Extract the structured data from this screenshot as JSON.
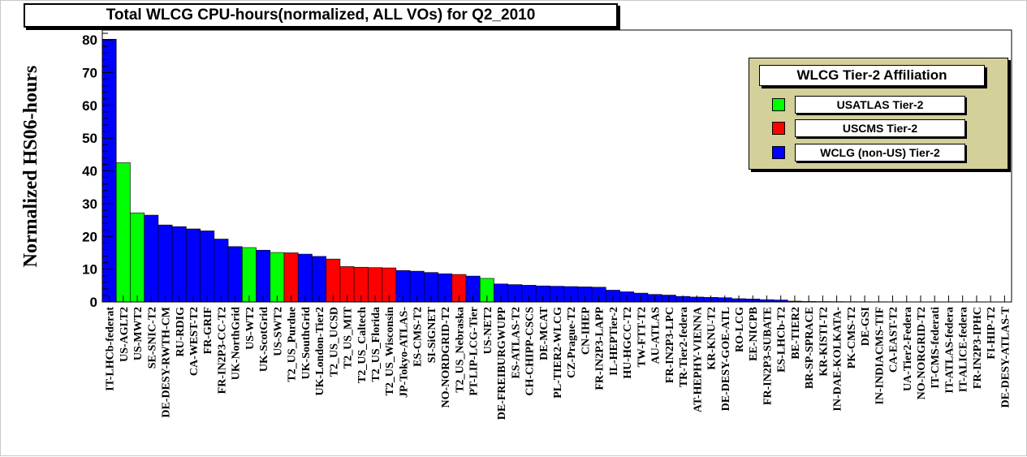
{
  "chart_data": {
    "type": "bar",
    "title": "Total WLCG CPU-hours(normalized, ALL VOs) for Q2_2010",
    "ylabel": "Normalized HS06-hours",
    "y_multiplier_base": "×10",
    "y_multiplier_exp": "6",
    "ylim": [
      0,
      83
    ],
    "yticks": [
      0,
      10,
      20,
      30,
      40,
      50,
      60,
      70,
      80
    ],
    "grid": false,
    "legend_position": "top-right",
    "legend": {
      "title": "WLCG Tier-2 Affiliation",
      "entries": [
        {
          "label": "USATLAS Tier-2",
          "color": "#00ff00"
        },
        {
          "label": "USCMS Tier-2",
          "color": "#ff0000"
        },
        {
          "label": "WCLG (non-US) Tier-2",
          "color": "#0000ff"
        }
      ]
    },
    "group_colors": {
      "usatlas": "#00ff00",
      "uscms": "#ff0000",
      "wlcg": "#0000ff"
    },
    "categories": [
      "IT-LHCb-federat",
      "US-AGLT2",
      "US-MWT2",
      "SE-SNIC-T2",
      "DE-DESY-RWTH-CM",
      "RU-RDIG",
      "CA-WEST-T2",
      "FR-GRIF",
      "FR-IN2P3-CC-T2",
      "UK-NorthGrid",
      "US-WT2",
      "UK-ScotGrid",
      "US-SWT2",
      "T2_US_Purdue",
      "UK-SouthGrid",
      "UK-London-Tier2",
      "T2_US_UCSD",
      "T2_US_MIT",
      "T2_US_Caltech",
      "T2_US_Florida",
      "T2_US_Wisconsin",
      "JP-Tokyo-ATLAS-",
      "ES-CMS-T2",
      "SI-SiGNET",
      "NO-NORDGRID-T2",
      "T2_US_Nebraska",
      "PT-LIP-LCG-Tier",
      "US-NET2",
      "DE-FREIBURGWUPP",
      "ES-ATLAS-T2",
      "CH-CHIPP-CSCS",
      "DE-MCAT",
      "PL-TIER2-WLCG",
      "CZ-Prague-T2",
      "CN-IHEP",
      "FR-IN2P3-LAPP",
      "IL-HEPTier-2",
      "HU-HGCC-T2",
      "TW-FTT-T2",
      "AU-ATLAS",
      "FR-IN2P3-LPC",
      "TR-Tier2-federa",
      "AT-HEPHY-VIENNA",
      "KR-KNU-T2",
      "DE-DESY-GOE-ATL",
      "RO-LCG",
      "EE-NICPB",
      "FR-IN2P3-SUBATE",
      "ES-LHCb-T2",
      "BE-TIER2",
      "BR-SP-SPRACE",
      "KR-KISTI-T2",
      "IN-DAE-KOLKATA-",
      "PK-CMS-T2",
      "DE-GSI",
      "IN-INDIACMS-TIF",
      "CA-EAST-T2",
      "UA-Tier2-Federa",
      "NO-NORGRID-T2",
      "IT-CMS-federati",
      "IT-ATLAS-federa",
      "IT-ALICE-federa",
      "FR-IN2P3-IPHC",
      "FI-HIP-T2",
      "DE-DESY-ATLAS-T"
    ],
    "values": [
      80.2,
      42.5,
      27.2,
      26.5,
      23.5,
      23.0,
      22.3,
      21.7,
      19.2,
      16.9,
      16.6,
      15.8,
      15.1,
      15.0,
      14.6,
      13.9,
      13.1,
      10.8,
      10.6,
      10.5,
      10.4,
      9.6,
      9.4,
      9.0,
      8.6,
      8.4,
      7.9,
      7.2,
      5.5,
      5.3,
      5.1,
      4.9,
      4.8,
      4.7,
      4.6,
      4.5,
      3.6,
      3.1,
      2.7,
      2.3,
      2.1,
      1.7,
      1.5,
      1.4,
      1.3,
      1.0,
      0.9,
      0.7,
      0.6,
      0.25,
      0.15,
      0.12,
      0.1,
      0.08,
      0.07,
      0.06,
      0.05,
      0.05,
      0.04,
      0.03,
      0.03,
      0.02,
      0.02,
      0.02,
      0.01
    ],
    "groups": [
      "wlcg",
      "usatlas",
      "usatlas",
      "wlcg",
      "wlcg",
      "wlcg",
      "wlcg",
      "wlcg",
      "wlcg",
      "wlcg",
      "usatlas",
      "wlcg",
      "usatlas",
      "uscms",
      "wlcg",
      "wlcg",
      "uscms",
      "uscms",
      "uscms",
      "uscms",
      "uscms",
      "wlcg",
      "wlcg",
      "wlcg",
      "wlcg",
      "uscms",
      "wlcg",
      "usatlas",
      "wlcg",
      "wlcg",
      "wlcg",
      "wlcg",
      "wlcg",
      "wlcg",
      "wlcg",
      "wlcg",
      "wlcg",
      "wlcg",
      "wlcg",
      "wlcg",
      "wlcg",
      "wlcg",
      "wlcg",
      "wlcg",
      "wlcg",
      "wlcg",
      "wlcg",
      "wlcg",
      "wlcg",
      "wlcg",
      "wlcg",
      "wlcg",
      "wlcg",
      "wlcg",
      "wlcg",
      "wlcg",
      "wlcg",
      "wlcg",
      "wlcg",
      "wlcg",
      "wlcg",
      "wlcg",
      "wlcg",
      "wlcg",
      "wlcg"
    ]
  }
}
